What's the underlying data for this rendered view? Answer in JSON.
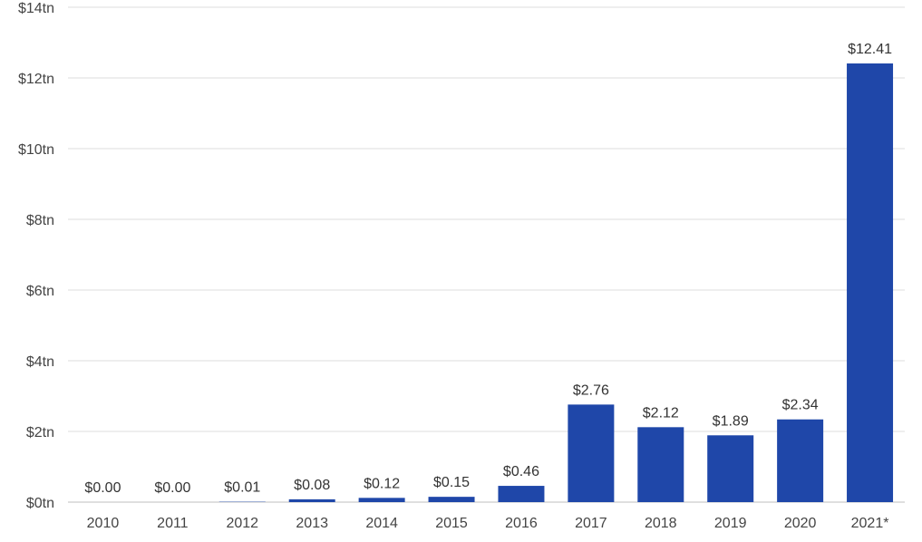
{
  "chart_data": {
    "type": "bar",
    "categories": [
      "2010",
      "2011",
      "2012",
      "2013",
      "2014",
      "2015",
      "2016",
      "2017",
      "2018",
      "2019",
      "2020",
      "2021*"
    ],
    "values": [
      0.0,
      0.0,
      0.01,
      0.08,
      0.12,
      0.15,
      0.46,
      2.76,
      2.12,
      1.89,
      2.34,
      12.41
    ],
    "data_labels": [
      "$0.00",
      "$0.00",
      "$0.01",
      "$0.08",
      "$0.12",
      "$0.15",
      "$0.46",
      "$2.76",
      "$2.12",
      "$1.89",
      "$2.34",
      "$12.41"
    ],
    "y_ticks": [
      0,
      2,
      4,
      6,
      8,
      10,
      12,
      14
    ],
    "y_tick_labels": [
      "$0tn",
      "$2tn",
      "$4tn",
      "$6tn",
      "$8tn",
      "$10tn",
      "$12tn",
      "$14tn"
    ],
    "ylim": [
      0,
      14
    ],
    "grid": true,
    "legend": "none",
    "bar_color": "#1f47a9"
  }
}
